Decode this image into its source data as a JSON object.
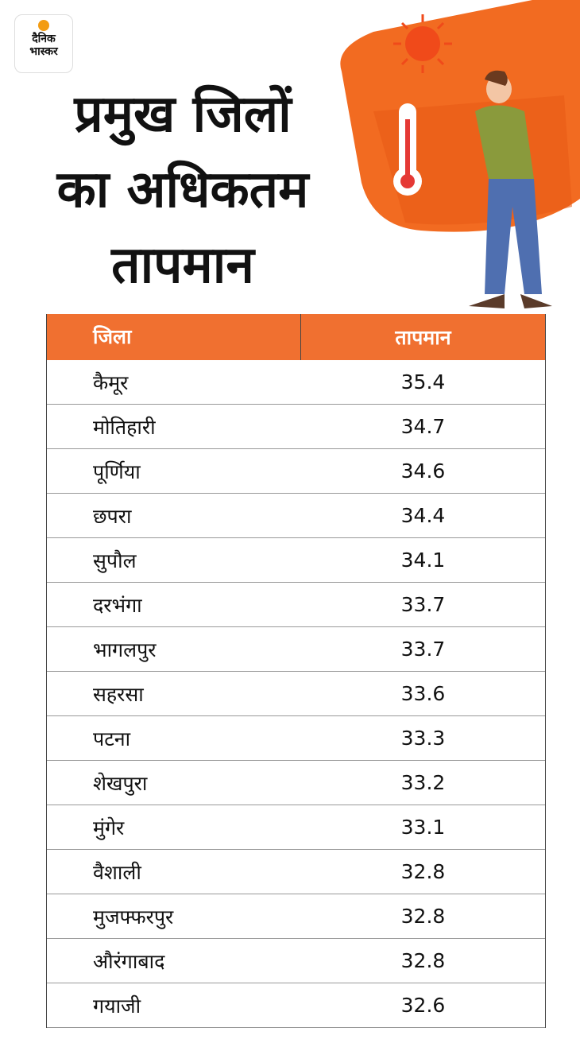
{
  "logo": [
    "दैनिक",
    "भास्कर"
  ],
  "title": [
    "प्रमुख जिलों",
    "का अधिकतम",
    "तापमान"
  ],
  "table": {
    "header": [
      "जिला",
      "तापमान"
    ],
    "rows": [
      [
        "कैमूर",
        35.4
      ],
      [
        "मोतिहारी",
        34.7
      ],
      [
        "पूर्णिया",
        34.6
      ],
      [
        "छपरा",
        34.4
      ],
      [
        "सुपौल",
        34.1
      ],
      [
        "दरभंगा",
        33.7
      ],
      [
        "भागलपुर",
        33.7
      ],
      [
        "सहरसा",
        33.6
      ],
      [
        "पटना",
        33.3
      ],
      [
        "शेखपुरा",
        33.2
      ],
      [
        "मुंगेर",
        33.1
      ],
      [
        "वैशाली",
        32.8
      ],
      [
        "मुजफ्फरपुर",
        32.8
      ],
      [
        "औरंगाबाद",
        32.8
      ],
      [
        "गयाजी",
        32.6
      ]
    ]
  }
}
